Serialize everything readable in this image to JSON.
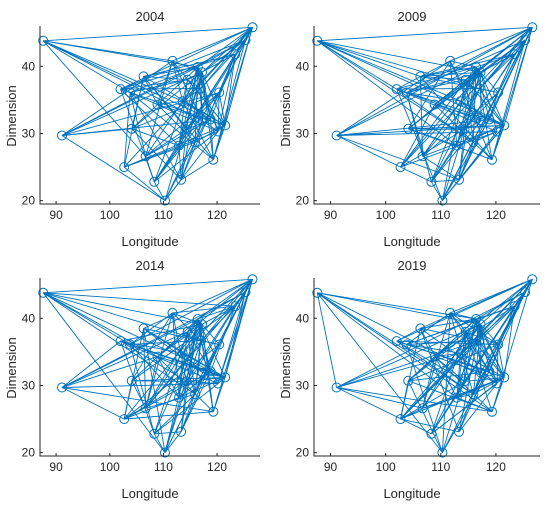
{
  "chart_data": [
    {
      "type": "scatter",
      "title": "2004",
      "xlabel": "Longitude",
      "ylabel": "Dimension",
      "xlim": [
        87,
        128
      ],
      "ylim": [
        19.5,
        46
      ],
      "xticks": [
        90,
        100,
        110,
        120
      ],
      "yticks": [
        20,
        30,
        40
      ],
      "nodes": [
        {
          "x": 87.6,
          "y": 43.8
        },
        {
          "x": 91.1,
          "y": 29.7
        },
        {
          "x": 102.7,
          "y": 25.0
        },
        {
          "x": 103.8,
          "y": 36.1
        },
        {
          "x": 104.1,
          "y": 30.7
        },
        {
          "x": 102.0,
          "y": 36.6
        },
        {
          "x": 106.3,
          "y": 38.5
        },
        {
          "x": 106.7,
          "y": 26.6
        },
        {
          "x": 108.3,
          "y": 22.8
        },
        {
          "x": 108.9,
          "y": 34.3
        },
        {
          "x": 110.3,
          "y": 20.0
        },
        {
          "x": 111.7,
          "y": 40.8
        },
        {
          "x": 112.9,
          "y": 28.2
        },
        {
          "x": 113.3,
          "y": 23.1
        },
        {
          "x": 113.6,
          "y": 34.8
        },
        {
          "x": 114.3,
          "y": 30.6
        },
        {
          "x": 114.5,
          "y": 38.0
        },
        {
          "x": 115.9,
          "y": 28.7
        },
        {
          "x": 116.4,
          "y": 39.9
        },
        {
          "x": 117.0,
          "y": 36.7
        },
        {
          "x": 117.2,
          "y": 39.1
        },
        {
          "x": 117.3,
          "y": 31.9
        },
        {
          "x": 118.8,
          "y": 32.1
        },
        {
          "x": 119.3,
          "y": 26.1
        },
        {
          "x": 120.2,
          "y": 30.3
        },
        {
          "x": 121.5,
          "y": 31.2
        },
        {
          "x": 123.4,
          "y": 41.8
        },
        {
          "x": 125.3,
          "y": 43.9
        },
        {
          "x": 126.6,
          "y": 45.8
        },
        {
          "x": 120.4,
          "y": 36.1
        }
      ]
    },
    {
      "type": "scatter",
      "title": "2009",
      "xlabel": "Longitude",
      "ylabel": "Dimension",
      "xlim": [
        87,
        128
      ],
      "ylim": [
        19.5,
        46
      ],
      "xticks": [
        90,
        100,
        110,
        120
      ],
      "yticks": [
        20,
        30,
        40
      ],
      "nodes": [
        {
          "x": 87.6,
          "y": 43.8
        },
        {
          "x": 91.1,
          "y": 29.7
        },
        {
          "x": 102.7,
          "y": 25.0
        },
        {
          "x": 103.8,
          "y": 36.1
        },
        {
          "x": 104.1,
          "y": 30.7
        },
        {
          "x": 102.0,
          "y": 36.6
        },
        {
          "x": 106.3,
          "y": 38.5
        },
        {
          "x": 106.7,
          "y": 26.6
        },
        {
          "x": 108.3,
          "y": 22.8
        },
        {
          "x": 108.9,
          "y": 34.3
        },
        {
          "x": 110.3,
          "y": 20.0
        },
        {
          "x": 111.7,
          "y": 40.8
        },
        {
          "x": 112.9,
          "y": 28.2
        },
        {
          "x": 113.3,
          "y": 23.1
        },
        {
          "x": 113.6,
          "y": 34.8
        },
        {
          "x": 114.3,
          "y": 30.6
        },
        {
          "x": 114.5,
          "y": 38.0
        },
        {
          "x": 115.9,
          "y": 28.7
        },
        {
          "x": 116.4,
          "y": 39.9
        },
        {
          "x": 117.0,
          "y": 36.7
        },
        {
          "x": 117.2,
          "y": 39.1
        },
        {
          "x": 117.3,
          "y": 31.9
        },
        {
          "x": 118.8,
          "y": 32.1
        },
        {
          "x": 119.3,
          "y": 26.1
        },
        {
          "x": 120.2,
          "y": 30.3
        },
        {
          "x": 121.5,
          "y": 31.2
        },
        {
          "x": 123.4,
          "y": 41.8
        },
        {
          "x": 125.3,
          "y": 43.9
        },
        {
          "x": 126.6,
          "y": 45.8
        },
        {
          "x": 120.4,
          "y": 36.1
        }
      ]
    },
    {
      "type": "scatter",
      "title": "2014",
      "xlabel": "Longitude",
      "ylabel": "Dimension",
      "xlim": [
        87,
        128
      ],
      "ylim": [
        19.5,
        46
      ],
      "xticks": [
        90,
        100,
        110,
        120
      ],
      "yticks": [
        20,
        30,
        40
      ],
      "nodes": [
        {
          "x": 87.6,
          "y": 43.8
        },
        {
          "x": 91.1,
          "y": 29.7
        },
        {
          "x": 102.7,
          "y": 25.0
        },
        {
          "x": 103.8,
          "y": 36.1
        },
        {
          "x": 104.1,
          "y": 30.7
        },
        {
          "x": 102.0,
          "y": 36.6
        },
        {
          "x": 106.3,
          "y": 38.5
        },
        {
          "x": 106.7,
          "y": 26.6
        },
        {
          "x": 108.3,
          "y": 22.8
        },
        {
          "x": 108.9,
          "y": 34.3
        },
        {
          "x": 110.3,
          "y": 20.0
        },
        {
          "x": 111.7,
          "y": 40.8
        },
        {
          "x": 112.9,
          "y": 28.2
        },
        {
          "x": 113.3,
          "y": 23.1
        },
        {
          "x": 113.6,
          "y": 34.8
        },
        {
          "x": 114.3,
          "y": 30.6
        },
        {
          "x": 114.5,
          "y": 38.0
        },
        {
          "x": 115.9,
          "y": 28.7
        },
        {
          "x": 116.4,
          "y": 39.9
        },
        {
          "x": 117.0,
          "y": 36.7
        },
        {
          "x": 117.2,
          "y": 39.1
        },
        {
          "x": 117.3,
          "y": 31.9
        },
        {
          "x": 118.8,
          "y": 32.1
        },
        {
          "x": 119.3,
          "y": 26.1
        },
        {
          "x": 120.2,
          "y": 30.3
        },
        {
          "x": 121.5,
          "y": 31.2
        },
        {
          "x": 123.4,
          "y": 41.8
        },
        {
          "x": 125.3,
          "y": 43.9
        },
        {
          "x": 126.6,
          "y": 45.8
        },
        {
          "x": 120.4,
          "y": 36.1
        }
      ]
    },
    {
      "type": "scatter",
      "title": "2019",
      "xlabel": "Longitude",
      "ylabel": "Dimension",
      "xlim": [
        87,
        128
      ],
      "ylim": [
        19.5,
        46
      ],
      "xticks": [
        90,
        100,
        110,
        120
      ],
      "yticks": [
        20,
        30,
        40
      ],
      "nodes": [
        {
          "x": 87.6,
          "y": 43.8
        },
        {
          "x": 91.1,
          "y": 29.7
        },
        {
          "x": 102.7,
          "y": 25.0
        },
        {
          "x": 103.8,
          "y": 36.1
        },
        {
          "x": 104.1,
          "y": 30.7
        },
        {
          "x": 102.0,
          "y": 36.6
        },
        {
          "x": 106.3,
          "y": 38.5
        },
        {
          "x": 106.7,
          "y": 26.6
        },
        {
          "x": 108.3,
          "y": 22.8
        },
        {
          "x": 108.9,
          "y": 34.3
        },
        {
          "x": 110.3,
          "y": 20.0
        },
        {
          "x": 111.7,
          "y": 40.8
        },
        {
          "x": 112.9,
          "y": 28.2
        },
        {
          "x": 113.3,
          "y": 23.1
        },
        {
          "x": 113.6,
          "y": 34.8
        },
        {
          "x": 114.3,
          "y": 30.6
        },
        {
          "x": 114.5,
          "y": 38.0
        },
        {
          "x": 115.9,
          "y": 28.7
        },
        {
          "x": 116.4,
          "y": 39.9
        },
        {
          "x": 117.0,
          "y": 36.7
        },
        {
          "x": 117.2,
          "y": 39.1
        },
        {
          "x": 117.3,
          "y": 31.9
        },
        {
          "x": 118.8,
          "y": 32.1
        },
        {
          "x": 119.3,
          "y": 26.1
        },
        {
          "x": 120.2,
          "y": 30.3
        },
        {
          "x": 121.5,
          "y": 31.2
        },
        {
          "x": 123.4,
          "y": 41.8
        },
        {
          "x": 125.3,
          "y": 43.9
        },
        {
          "x": 126.6,
          "y": 45.8
        },
        {
          "x": 120.4,
          "y": 36.1
        }
      ]
    }
  ],
  "colors": {
    "series": "#0072BD",
    "axis": "#262626",
    "background": "#ffffff"
  }
}
